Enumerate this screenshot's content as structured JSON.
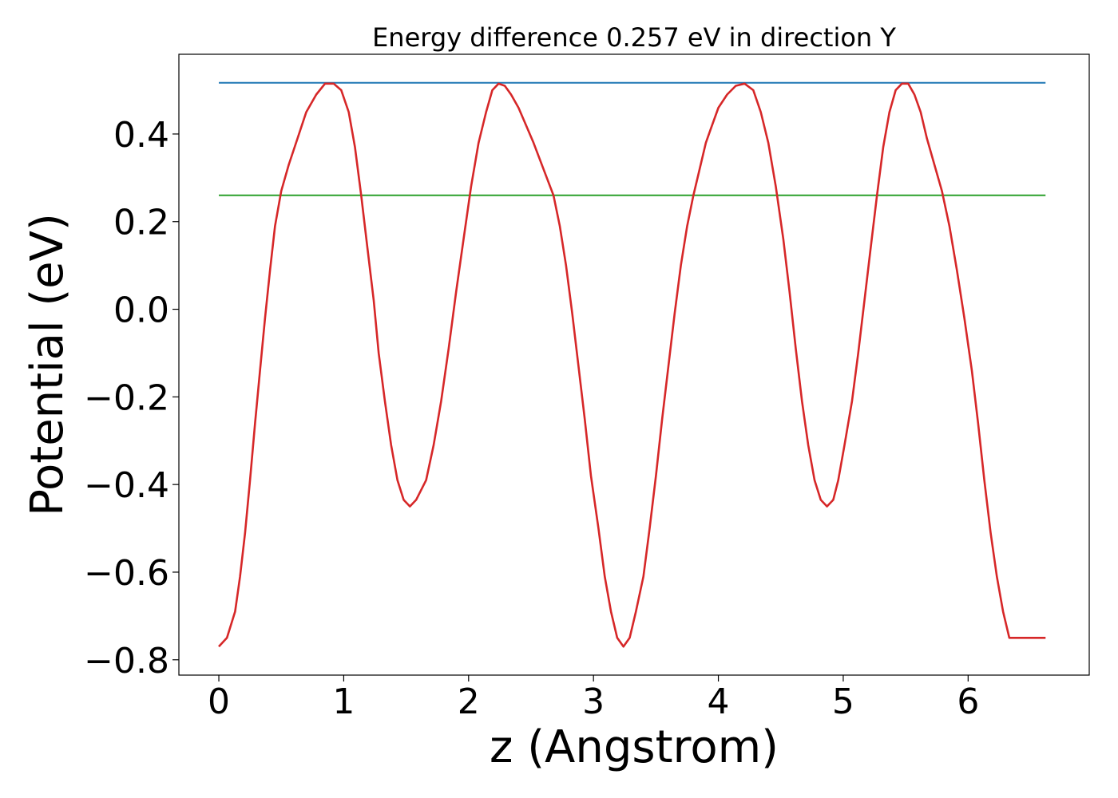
{
  "chart_data": {
    "type": "line",
    "title": "Energy difference 0.257 eV in direction Y",
    "xlabel": "z (Angstrom)",
    "ylabel": "Potential (eV)",
    "xlim": [
      -0.32,
      6.97
    ],
    "ylim": [
      -0.835,
      0.582
    ],
    "xticks": [
      0,
      1,
      2,
      3,
      4,
      5,
      6
    ],
    "yticks": [
      -0.8,
      -0.6,
      -0.4,
      -0.2,
      0.0,
      0.2,
      0.4
    ],
    "grid": false,
    "series": [
      {
        "color": "#d62728",
        "x": [
          0.0,
          0.065,
          0.13,
          0.17,
          0.21,
          0.25,
          0.29,
          0.33,
          0.37,
          0.41,
          0.45,
          0.5,
          0.56,
          0.63,
          0.7,
          0.78,
          0.85,
          0.92,
          0.98,
          1.04,
          1.09,
          1.14,
          1.19,
          1.24,
          1.28,
          1.33,
          1.38,
          1.43,
          1.48,
          1.53,
          1.58,
          1.66,
          1.72,
          1.78,
          1.84,
          1.9,
          1.96,
          2.02,
          2.08,
          2.14,
          2.19,
          2.24,
          2.29,
          2.34,
          2.4,
          2.46,
          2.52,
          2.6,
          2.68,
          2.73,
          2.78,
          2.83,
          2.88,
          2.93,
          2.98,
          3.04,
          3.09,
          3.14,
          3.19,
          3.24,
          3.29,
          3.34,
          3.4,
          3.45,
          3.5,
          3.55,
          3.6,
          3.65,
          3.7,
          3.75,
          3.8,
          3.85,
          3.9,
          3.95,
          4.0,
          4.07,
          4.14,
          4.21,
          4.28,
          4.34,
          4.4,
          4.46,
          4.52,
          4.57,
          4.62,
          4.67,
          4.72,
          4.77,
          4.82,
          4.87,
          4.92,
          4.96,
          5.01,
          5.07,
          5.12,
          5.17,
          5.22,
          5.27,
          5.32,
          5.37,
          5.42,
          5.47,
          5.52,
          5.57,
          5.62,
          5.67,
          5.73,
          5.79,
          5.85,
          5.91,
          5.97,
          6.03,
          6.08,
          6.13,
          6.18,
          6.23,
          6.28,
          6.33,
          6.38,
          6.43,
          6.48,
          6.53,
          6.58,
          6.62
        ],
        "y": [
          -0.77,
          -0.75,
          -0.69,
          -0.61,
          -0.51,
          -0.39,
          -0.26,
          -0.14,
          -0.02,
          0.09,
          0.19,
          0.27,
          0.33,
          0.39,
          0.45,
          0.49,
          0.515,
          0.515,
          0.5,
          0.45,
          0.37,
          0.26,
          0.14,
          0.02,
          -0.1,
          -0.21,
          -0.31,
          -0.39,
          -0.435,
          -0.45,
          -0.435,
          -0.39,
          -0.31,
          -0.21,
          -0.09,
          0.04,
          0.16,
          0.28,
          0.38,
          0.45,
          0.5,
          0.515,
          0.51,
          0.49,
          0.46,
          0.42,
          0.38,
          0.32,
          0.26,
          0.19,
          0.1,
          -0.01,
          -0.13,
          -0.25,
          -0.38,
          -0.5,
          -0.61,
          -0.69,
          -0.75,
          -0.77,
          -0.75,
          -0.69,
          -0.61,
          -0.5,
          -0.38,
          -0.25,
          -0.13,
          -0.01,
          0.1,
          0.19,
          0.26,
          0.32,
          0.38,
          0.42,
          0.46,
          0.49,
          0.51,
          0.515,
          0.5,
          0.45,
          0.38,
          0.28,
          0.16,
          0.04,
          -0.09,
          -0.21,
          -0.31,
          -0.39,
          -0.435,
          -0.45,
          -0.435,
          -0.39,
          -0.31,
          -0.21,
          -0.1,
          0.02,
          0.14,
          0.26,
          0.37,
          0.45,
          0.5,
          0.515,
          0.515,
          0.49,
          0.45,
          0.39,
          0.33,
          0.27,
          0.19,
          0.09,
          -0.02,
          -0.14,
          -0.26,
          -0.39,
          -0.51,
          -0.61,
          -0.69,
          -0.75,
          -0.75,
          -0.75,
          -0.75,
          -0.75,
          -0.75,
          -0.75
        ]
      }
    ],
    "hlines": [
      {
        "color": "#1f77b4",
        "y": 0.517,
        "xmin": 0.0,
        "xmax": 6.62
      },
      {
        "color": "#2ca02c",
        "y": 0.26,
        "xmin": 0.0,
        "xmax": 6.62
      }
    ]
  }
}
